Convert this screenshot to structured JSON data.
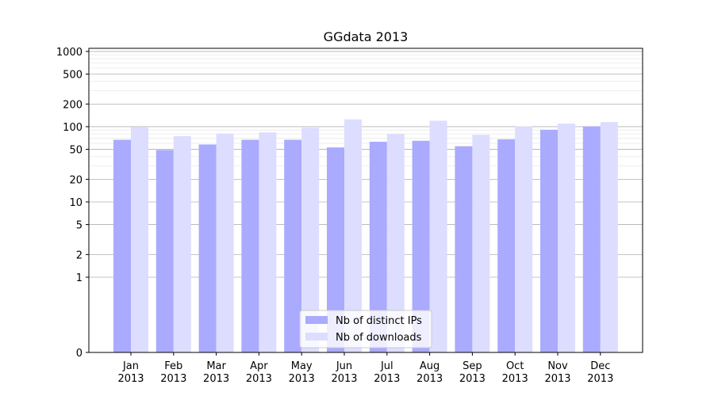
{
  "chart_data": {
    "type": "bar",
    "title": "GGdata 2013",
    "xlabel": "",
    "ylabel": "",
    "yscale": "symlog",
    "ylim": [
      0,
      1100
    ],
    "grid": "horizontal",
    "legend_position": "bottom-center",
    "categories": [
      {
        "month": "Jan",
        "year": "2013"
      },
      {
        "month": "Feb",
        "year": "2013"
      },
      {
        "month": "Mar",
        "year": "2013"
      },
      {
        "month": "Apr",
        "year": "2013"
      },
      {
        "month": "May",
        "year": "2013"
      },
      {
        "month": "Jun",
        "year": "2013"
      },
      {
        "month": "Jul",
        "year": "2013"
      },
      {
        "month": "Aug",
        "year": "2013"
      },
      {
        "month": "Sep",
        "year": "2013"
      },
      {
        "month": "Oct",
        "year": "2013"
      },
      {
        "month": "Nov",
        "year": "2013"
      },
      {
        "month": "Dec",
        "year": "2013"
      }
    ],
    "yticks": [
      {
        "value": 0,
        "label": "0"
      },
      {
        "value": 1,
        "label": "1"
      },
      {
        "value": 2,
        "label": "2"
      },
      {
        "value": 5,
        "label": "5"
      },
      {
        "value": 10,
        "label": "10"
      },
      {
        "value": 20,
        "label": "20"
      },
      {
        "value": 50,
        "label": "50"
      },
      {
        "value": 100,
        "label": "100"
      },
      {
        "value": 200,
        "label": "200"
      },
      {
        "value": 500,
        "label": "500"
      },
      {
        "value": 1000,
        "label": "1000"
      }
    ],
    "series": [
      {
        "name": "Nb of distinct IPs",
        "color": "#aaaaff",
        "values": [
          67,
          49,
          58,
          67,
          67,
          53,
          63,
          65,
          55,
          68,
          91,
          101
        ]
      },
      {
        "name": "Nb of downloads",
        "color": "#ddddff",
        "values": [
          98,
          75,
          81,
          84,
          97,
          125,
          80,
          120,
          78,
          101,
          110,
          115
        ]
      }
    ]
  }
}
